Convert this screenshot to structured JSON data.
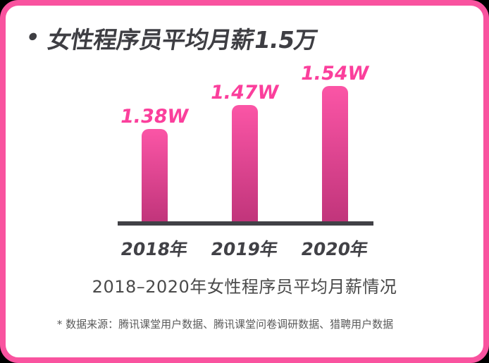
{
  "page": {
    "title_bullet": "•",
    "title": "女性程序员平均月薪1.5万"
  },
  "chart_data": {
    "type": "bar",
    "title": "女性程序员平均月薪1.5万",
    "categories": [
      "2018年",
      "2019年",
      "2020年"
    ],
    "values": [
      1.38,
      1.47,
      1.54
    ],
    "value_labels": [
      "1.38W",
      "1.47W",
      "1.54W"
    ],
    "unit": "W",
    "xlabel": "",
    "ylabel": "",
    "grid": false,
    "legend": false,
    "caption": "2018–2020年女性程序员平均月薪情况",
    "footnote": "* 数据来源：腾讯课堂用户数据、腾讯课堂问卷调研数据、猎聘用户数据"
  },
  "colors": {
    "outer_bg": "#000000",
    "card_bg": "#FFFFFF",
    "border_pink": "#F9539F",
    "bar_top": "#FB55A6",
    "bar_bottom": "#C1357B",
    "label_pink": "#FB3F9C",
    "text_dark": "#3E3E43",
    "axis_dark": "#414146",
    "caption_gray": "#4A4A4A",
    "footnote_gray": "#5A5A5A"
  }
}
